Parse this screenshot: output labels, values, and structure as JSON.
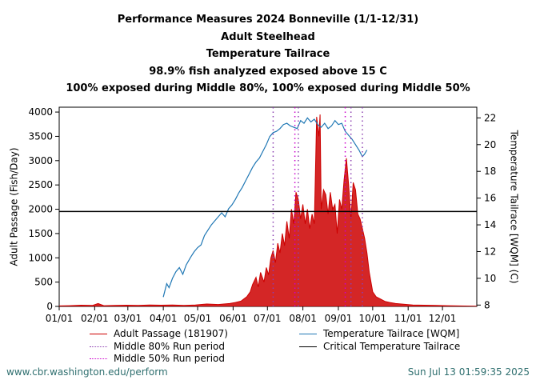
{
  "title": {
    "line1": "Performance Measures 2024 Bonneville (1/1-12/31)",
    "line2": "Adult Steelhead",
    "line3": "Temperature Tailrace",
    "line4": "98.9% fish analyzed exposed above 15 C",
    "line5": "100% exposed during Middle 80%, 100% exposed during Middle 50%"
  },
  "footer": {
    "source": "www.cbr.washington.edu/perform",
    "timestamp": "Sun Jul 13 01:59:35 2025"
  },
  "legend": {
    "adult_passage": "Adult Passage (181907)",
    "middle80": "Middle 80% Run period",
    "middle50": "Middle 50% Run period",
    "temperature": "Temperature Tailrace [WQM]",
    "critical": "Critical Temperature Tailrace"
  },
  "colors": {
    "passage": "#cc0000",
    "temperature": "#1f77b4",
    "critical": "#000000",
    "middle80": "#8b3fb0",
    "middle50": "#cc00cc"
  },
  "chart_data": {
    "type": "line",
    "xlabel": "",
    "ylabel": "Adult Passage (Fish/Day)",
    "y2label": "Temperature Tailrace [WQM] (C)",
    "ylim": [
      0,
      4100
    ],
    "y2lim": [
      7.9,
      22.8
    ],
    "yticks": [
      0,
      500,
      1000,
      1500,
      2000,
      2500,
      3000,
      3500,
      4000
    ],
    "y2ticks": [
      8,
      10,
      12,
      14,
      16,
      18,
      20,
      22
    ],
    "xticks": [
      "01/01",
      "02/01",
      "03/01",
      "04/01",
      "05/01",
      "06/01",
      "07/01",
      "08/01",
      "09/01",
      "10/01",
      "11/01",
      "12/01"
    ],
    "xtick_days": [
      1,
      32,
      61,
      92,
      122,
      153,
      183,
      214,
      245,
      275,
      306,
      336
    ],
    "grid": false,
    "critical_temperature": 15,
    "middle80_days": [
      188,
      210,
      256,
      266
    ],
    "middle50_days": [
      207,
      251
    ],
    "series": [
      {
        "name": "Adult Passage (181907)",
        "axis": "left",
        "points": [
          [
            1,
            10
          ],
          [
            10,
            15
          ],
          [
            20,
            25
          ],
          [
            30,
            20
          ],
          [
            35,
            60
          ],
          [
            40,
            15
          ],
          [
            50,
            20
          ],
          [
            60,
            25
          ],
          [
            70,
            20
          ],
          [
            80,
            30
          ],
          [
            90,
            25
          ],
          [
            100,
            30
          ],
          [
            110,
            20
          ],
          [
            120,
            30
          ],
          [
            130,
            50
          ],
          [
            140,
            40
          ],
          [
            150,
            60
          ],
          [
            155,
            80
          ],
          [
            160,
            110
          ],
          [
            165,
            200
          ],
          [
            168,
            300
          ],
          [
            170,
            450
          ],
          [
            173,
            600
          ],
          [
            175,
            400
          ],
          [
            177,
            700
          ],
          [
            180,
            500
          ],
          [
            182,
            800
          ],
          [
            184,
            650
          ],
          [
            186,
            1000
          ],
          [
            188,
            1150
          ],
          [
            190,
            900
          ],
          [
            192,
            1300
          ],
          [
            194,
            1100
          ],
          [
            196,
            1500
          ],
          [
            198,
            1250
          ],
          [
            200,
            1750
          ],
          [
            202,
            1400
          ],
          [
            204,
            2000
          ],
          [
            206,
            1700
          ],
          [
            208,
            2350
          ],
          [
            210,
            2200
          ],
          [
            212,
            1800
          ],
          [
            214,
            2100
          ],
          [
            216,
            1700
          ],
          [
            218,
            2000
          ],
          [
            220,
            1600
          ],
          [
            222,
            1900
          ],
          [
            224,
            1700
          ],
          [
            226,
            3900
          ],
          [
            228,
            3500
          ],
          [
            229,
            3950
          ],
          [
            230,
            2000
          ],
          [
            232,
            2400
          ],
          [
            234,
            2300
          ],
          [
            236,
            1900
          ],
          [
            238,
            2350
          ],
          [
            240,
            2000
          ],
          [
            242,
            2100
          ],
          [
            244,
            1500
          ],
          [
            246,
            2200
          ],
          [
            248,
            2000
          ],
          [
            250,
            2600
          ],
          [
            252,
            3050
          ],
          [
            254,
            2500
          ],
          [
            256,
            1800
          ],
          [
            258,
            2550
          ],
          [
            260,
            2400
          ],
          [
            262,
            1900
          ],
          [
            264,
            1800
          ],
          [
            266,
            1600
          ],
          [
            268,
            1400
          ],
          [
            270,
            1100
          ],
          [
            272,
            700
          ],
          [
            275,
            300
          ],
          [
            278,
            200
          ],
          [
            282,
            150
          ],
          [
            286,
            100
          ],
          [
            290,
            80
          ],
          [
            295,
            60
          ],
          [
            300,
            50
          ],
          [
            305,
            40
          ],
          [
            310,
            30
          ],
          [
            320,
            25
          ],
          [
            330,
            20
          ],
          [
            340,
            15
          ],
          [
            350,
            10
          ],
          [
            366,
            5
          ]
        ]
      },
      {
        "name": "Temperature Tailrace [WQM]",
        "axis": "right",
        "points": [
          [
            92,
            8.6
          ],
          [
            95,
            9.6
          ],
          [
            97,
            9.3
          ],
          [
            100,
            10.0
          ],
          [
            103,
            10.5
          ],
          [
            106,
            10.8
          ],
          [
            109,
            10.3
          ],
          [
            112,
            11.0
          ],
          [
            116,
            11.6
          ],
          [
            119,
            12.0
          ],
          [
            122,
            12.3
          ],
          [
            125,
            12.5
          ],
          [
            128,
            13.2
          ],
          [
            131,
            13.6
          ],
          [
            134,
            14.0
          ],
          [
            137,
            14.3
          ],
          [
            140,
            14.6
          ],
          [
            143,
            14.9
          ],
          [
            146,
            14.6
          ],
          [
            149,
            15.2
          ],
          [
            152,
            15.5
          ],
          [
            155,
            15.9
          ],
          [
            158,
            16.4
          ],
          [
            161,
            16.8
          ],
          [
            164,
            17.3
          ],
          [
            167,
            17.8
          ],
          [
            170,
            18.3
          ],
          [
            173,
            18.7
          ],
          [
            176,
            19.0
          ],
          [
            179,
            19.5
          ],
          [
            182,
            20.0
          ],
          [
            185,
            20.6
          ],
          [
            188,
            20.9
          ],
          [
            191,
            21.0
          ],
          [
            194,
            21.2
          ],
          [
            197,
            21.5
          ],
          [
            200,
            21.6
          ],
          [
            203,
            21.4
          ],
          [
            206,
            21.3
          ],
          [
            209,
            21.2
          ],
          [
            212,
            21.8
          ],
          [
            215,
            21.6
          ],
          [
            218,
            22.0
          ],
          [
            221,
            21.7
          ],
          [
            224,
            21.9
          ],
          [
            227,
            21.5
          ],
          [
            230,
            21.3
          ],
          [
            233,
            21.6
          ],
          [
            236,
            21.2
          ],
          [
            239,
            21.4
          ],
          [
            242,
            21.8
          ],
          [
            245,
            21.5
          ],
          [
            248,
            21.6
          ],
          [
            251,
            21.0
          ],
          [
            254,
            20.7
          ],
          [
            257,
            20.4
          ],
          [
            260,
            20.0
          ],
          [
            263,
            19.6
          ],
          [
            266,
            19.1
          ],
          [
            268,
            19.3
          ],
          [
            270,
            19.6
          ]
        ]
      }
    ]
  }
}
